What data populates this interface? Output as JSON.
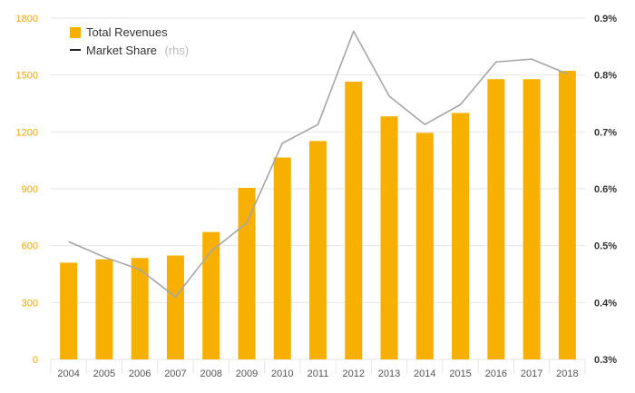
{
  "chart_data": {
    "type": "bar",
    "categories": [
      "2004",
      "2005",
      "2006",
      "2007",
      "2008",
      "2009",
      "2010",
      "2011",
      "2012",
      "2013",
      "2014",
      "2015",
      "2016",
      "2017",
      "2018"
    ],
    "series": [
      {
        "name": "Total Revenues",
        "type": "bar",
        "axis": "left",
        "values": [
          510,
          528,
          535,
          548,
          672,
          905,
          1065,
          1152,
          1465,
          1282,
          1195,
          1300,
          1478,
          1478,
          1522
        ]
      },
      {
        "name": "Market Share",
        "legend_suffix": "(rhs)",
        "type": "line",
        "axis": "right",
        "values": [
          0.507,
          0.48,
          0.458,
          0.41,
          0.49,
          0.54,
          0.68,
          0.713,
          0.877,
          0.763,
          0.713,
          0.748,
          0.823,
          0.828,
          0.802
        ]
      }
    ],
    "y_left": {
      "ticks": [
        0,
        300,
        600,
        900,
        1200,
        1500,
        1800
      ],
      "tick_labels": [
        "0",
        "300",
        "600",
        "900",
        "1200",
        "1500",
        "1800"
      ],
      "lim": [
        0,
        1800
      ]
    },
    "y_right": {
      "ticks": [
        0.3,
        0.4,
        0.5,
        0.6,
        0.7,
        0.8,
        0.9
      ],
      "tick_labels": [
        "0.3%",
        "0.4%",
        "0.5%",
        "0.6%",
        "0.7%",
        "0.8%",
        "0.9%"
      ],
      "lim": [
        0.3,
        0.9
      ]
    },
    "grid": true,
    "legend_position": "top-left",
    "colors": {
      "bars": "#f8b000",
      "line": "#a6a6a6",
      "legend_line": "#222222",
      "left_ticks": "#f0a800",
      "grid": "#e6e6e6"
    }
  }
}
